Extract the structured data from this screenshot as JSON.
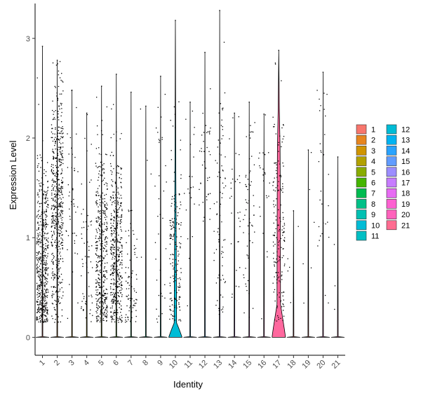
{
  "chart_data": {
    "type": "violin",
    "xlabel": "Identity",
    "ylabel": "Expression Level",
    "ylim": [
      -0.18,
      3.35
    ],
    "yticks": [
      0,
      1,
      2,
      3
    ],
    "categories": [
      "1",
      "2",
      "3",
      "4",
      "5",
      "6",
      "7",
      "8",
      "9",
      "10",
      "11",
      "12",
      "13",
      "14",
      "15",
      "16",
      "17",
      "18",
      "19",
      "20",
      "21"
    ],
    "colors": [
      "#F8766D",
      "#E7851E",
      "#D09400",
      "#B2A100",
      "#89AC00",
      "#45B500",
      "#00BC51",
      "#00C087",
      "#00C0B2",
      "#00BCD6",
      "#00B3F2",
      "#29A3FF",
      "#9C8DFF",
      "#D277FF",
      "#F166E8",
      "#FF61C7",
      "#FF689E",
      "#FF7272",
      "#F8766D",
      "#FF61C7",
      "#FF689E"
    ],
    "legend": {
      "position": "right",
      "col1": [
        "1",
        "2",
        "3",
        "4",
        "5",
        "6",
        "7",
        "8",
        "9",
        "10",
        "11"
      ],
      "col2": [
        "12",
        "13",
        "14",
        "15",
        "16",
        "17",
        "18",
        "19",
        "20",
        "21"
      ],
      "col1_colors": [
        "#F8766D",
        "#E7851E",
        "#D09400",
        "#B2A100",
        "#89AC00",
        "#45B500",
        "#00BC51",
        "#00C087",
        "#00C0B2",
        "#00BCD6",
        "#00BFC4"
      ],
      "col2_colors": [
        "#00BCD6",
        "#00B3F2",
        "#29A3FF",
        "#619CFF",
        "#9C8DFF",
        "#C77CFF",
        "#E76BF3",
        "#FD61D1",
        "#FF62BC",
        "#FF6C91"
      ]
    },
    "series": [
      {
        "name": "1",
        "max": 2.92,
        "zero_bump": 0,
        "n_points": 520,
        "center": 0.7,
        "spread": 0.5
      },
      {
        "name": "2",
        "max": 2.78,
        "zero_bump": 0,
        "n_points": 560,
        "center": 1.3,
        "spread": 0.6
      },
      {
        "name": "3",
        "max": 2.48,
        "zero_bump": 0,
        "n_points": 45,
        "center": 1.2,
        "spread": 0.6
      },
      {
        "name": "4",
        "max": 2.25,
        "zero_bump": 0,
        "n_points": 60,
        "center": 0.9,
        "spread": 0.6
      },
      {
        "name": "5",
        "max": 2.52,
        "zero_bump": 0,
        "n_points": 420,
        "center": 0.8,
        "spread": 0.55
      },
      {
        "name": "6",
        "max": 2.64,
        "zero_bump": 0,
        "n_points": 430,
        "center": 0.8,
        "spread": 0.55
      },
      {
        "name": "7",
        "max": 2.46,
        "zero_bump": 0,
        "n_points": 80,
        "center": 0.6,
        "spread": 0.45
      },
      {
        "name": "8",
        "max": 2.32,
        "zero_bump": 0,
        "n_points": 4,
        "center": 1.8,
        "spread": 0.3
      },
      {
        "name": "9",
        "max": 2.62,
        "zero_bump": 0,
        "n_points": 35,
        "center": 1.2,
        "spread": 0.7
      },
      {
        "name": "10",
        "max": 3.18,
        "zero_bump": 0.17,
        "n_points": 170,
        "center": 0.8,
        "spread": 0.55
      },
      {
        "name": "11",
        "max": 2.36,
        "zero_bump": 0,
        "n_points": 20,
        "center": 1.4,
        "spread": 0.6
      },
      {
        "name": "12",
        "max": 2.86,
        "zero_bump": 0,
        "n_points": 40,
        "center": 1.8,
        "spread": 0.4
      },
      {
        "name": "13",
        "max": 3.28,
        "zero_bump": 0,
        "n_points": 80,
        "center": 1.2,
        "spread": 0.7
      },
      {
        "name": "14",
        "max": 2.25,
        "zero_bump": 0,
        "n_points": 30,
        "center": 1.3,
        "spread": 0.6
      },
      {
        "name": "15",
        "max": 2.36,
        "zero_bump": 0,
        "n_points": 60,
        "center": 1.1,
        "spread": 0.6
      },
      {
        "name": "16",
        "max": 2.24,
        "zero_bump": 0,
        "n_points": 25,
        "center": 1.4,
        "spread": 0.5
      },
      {
        "name": "17",
        "max": 2.88,
        "zero_bump": 0.33,
        "n_points": 170,
        "center": 1.0,
        "spread": 0.6
      },
      {
        "name": "18",
        "max": 1.27,
        "zero_bump": 0,
        "n_points": 5,
        "center": 0.6,
        "spread": 0.4
      },
      {
        "name": "19",
        "max": 1.88,
        "zero_bump": 0,
        "n_points": 6,
        "center": 1.1,
        "spread": 0.6
      },
      {
        "name": "20",
        "max": 2.66,
        "zero_bump": 0,
        "n_points": 30,
        "center": 1.6,
        "spread": 0.6
      },
      {
        "name": "21",
        "max": 1.81,
        "zero_bump": 0,
        "n_points": 3,
        "center": 0.5,
        "spread": 0.3
      }
    ]
  }
}
